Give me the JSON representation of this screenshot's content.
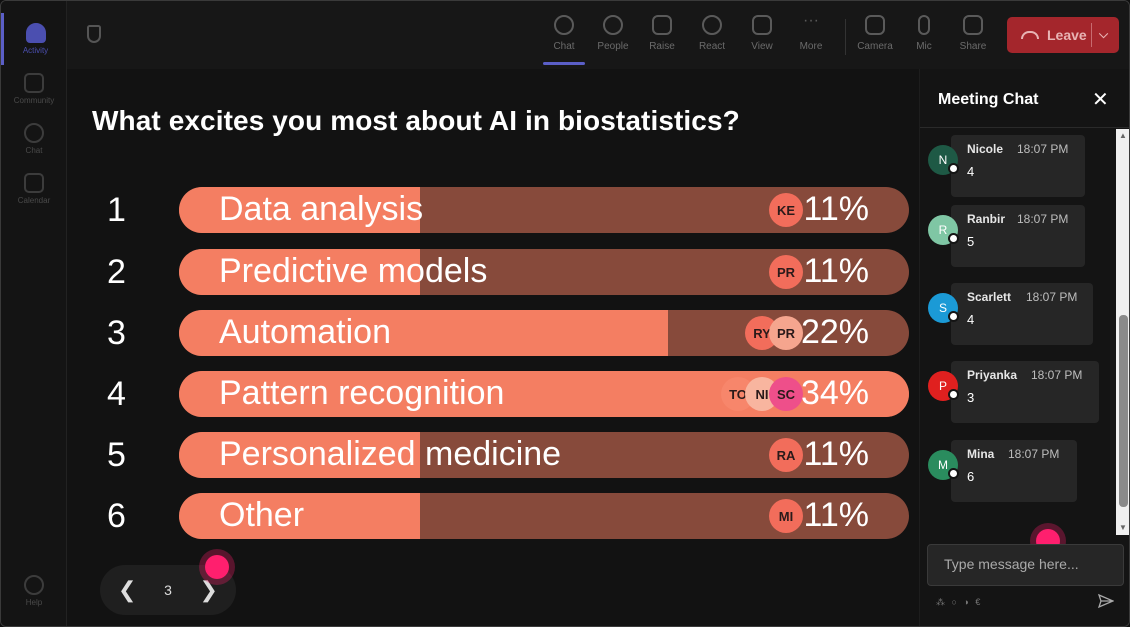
{
  "rail": {
    "items": [
      {
        "label": "Activity",
        "icon": "bell-icon",
        "active": true
      },
      {
        "label": "Community",
        "icon": "community-icon",
        "active": false
      },
      {
        "label": "Chat",
        "icon": "chat-icon",
        "active": false
      },
      {
        "label": "Calendar",
        "icon": "calendar-icon",
        "active": false
      }
    ],
    "help": {
      "label": "Help",
      "icon": "help-icon"
    }
  },
  "toolbar": {
    "items": [
      {
        "label": "Chat",
        "icon": "chat-icon",
        "active": true
      },
      {
        "label": "People",
        "icon": "people-icon",
        "active": false
      },
      {
        "label": "Raise",
        "icon": "raise-hand-icon",
        "active": false
      },
      {
        "label": "React",
        "icon": "react-icon",
        "active": false
      },
      {
        "label": "View",
        "icon": "view-grid-icon",
        "active": false
      },
      {
        "label": "More",
        "icon": "more-icon",
        "active": false
      },
      {
        "label": "Camera",
        "icon": "camera-icon",
        "active": false
      },
      {
        "label": "Mic",
        "icon": "mic-icon",
        "active": false
      },
      {
        "label": "Share",
        "icon": "share-icon",
        "active": false
      }
    ],
    "leave_label": "Leave"
  },
  "poll": {
    "question": "What excites you most about AI in biostatistics?",
    "options": [
      {
        "num": "1",
        "label": "Data analysis",
        "percent": "11%",
        "fill": 0.33,
        "voters": [
          "KE"
        ]
      },
      {
        "num": "2",
        "label": "Predictive models",
        "percent": "11%",
        "fill": 0.33,
        "voters": [
          "PR"
        ]
      },
      {
        "num": "3",
        "label": "Automation",
        "percent": "22%",
        "fill": 0.67,
        "voters": [
          "RY",
          "PR"
        ]
      },
      {
        "num": "4",
        "label": "Pattern recognition",
        "percent": "34%",
        "fill": 1.0,
        "voters": [
          "TO",
          "NI",
          "SC"
        ]
      },
      {
        "num": "5",
        "label": "Personalized medicine",
        "percent": "11%",
        "fill": 0.33,
        "voters": [
          "RA"
        ]
      },
      {
        "num": "6",
        "label": "Other",
        "percent": "11%",
        "fill": 0.33,
        "voters": [
          "MI"
        ]
      }
    ],
    "page": "3"
  },
  "chat": {
    "title": "Meeting Chat",
    "messages": [
      {
        "initial": "N",
        "name": "Nicole",
        "time": "18:07 PM",
        "text": "4",
        "color": "#1e5945"
      },
      {
        "initial": "R",
        "name": "Ranbir",
        "time": "18:07 PM",
        "text": "5",
        "color": "#7fc6a4"
      },
      {
        "initial": "S",
        "name": "Scarlett",
        "time": "18:07 PM",
        "text": "4",
        "color": "#1b9ad6"
      },
      {
        "initial": "P",
        "name": "Priyanka",
        "time": "18:07 PM",
        "text": "3",
        "color": "#e0201f"
      },
      {
        "initial": "M",
        "name": "Mina",
        "time": "18:07 PM",
        "text": "6",
        "color": "#2a8c5e"
      }
    ],
    "compose_placeholder": "Type message here..."
  },
  "colors": {
    "bar_fill": "#f47e62",
    "bar_track": "#874a3b",
    "accent": "#5b5fc7",
    "leave": "#a4262c"
  }
}
